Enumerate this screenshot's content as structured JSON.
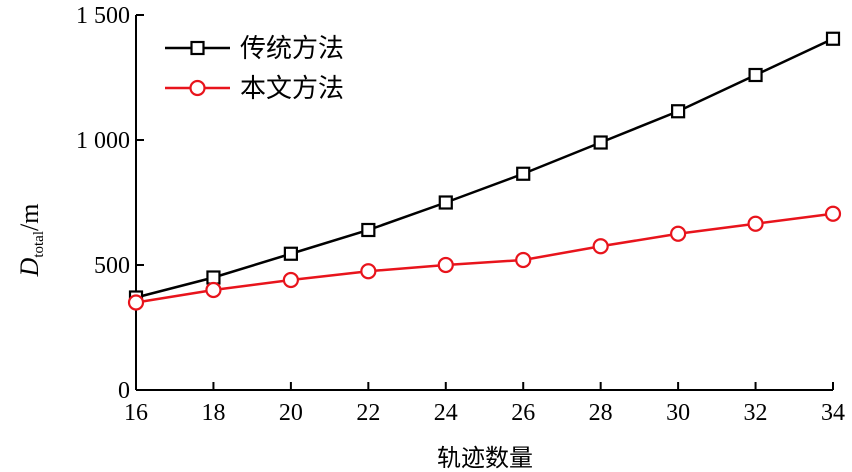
{
  "chart_data": {
    "type": "line",
    "x": [
      16,
      18,
      20,
      22,
      24,
      26,
      28,
      30,
      32,
      34
    ],
    "xlabel": "轨迹数量",
    "ylabel": {
      "base": "D",
      "subscript": "total",
      "unit": "/m"
    },
    "xlim": [
      16,
      34
    ],
    "ylim": [
      0,
      1500
    ],
    "x_ticks": [
      "16",
      "18",
      "20",
      "22",
      "24",
      "26",
      "28",
      "30",
      "32",
      "34"
    ],
    "y_ticks": [
      {
        "value": 0,
        "label": "0"
      },
      {
        "value": 500,
        "label": "500"
      },
      {
        "value": 1000,
        "label": "1 000"
      },
      {
        "value": 1500,
        "label": "1 500"
      }
    ],
    "grid": false,
    "legend_position": "top-left",
    "series": [
      {
        "name": "传统方法",
        "color": "#000000",
        "marker": "square",
        "values": [
          370,
          450,
          545,
          640,
          750,
          865,
          990,
          1115,
          1260,
          1405
        ]
      },
      {
        "name": "本文方法",
        "color": "#e8141c",
        "marker": "circle",
        "values": [
          350,
          400,
          440,
          475,
          500,
          520,
          575,
          625,
          665,
          705
        ]
      }
    ]
  }
}
